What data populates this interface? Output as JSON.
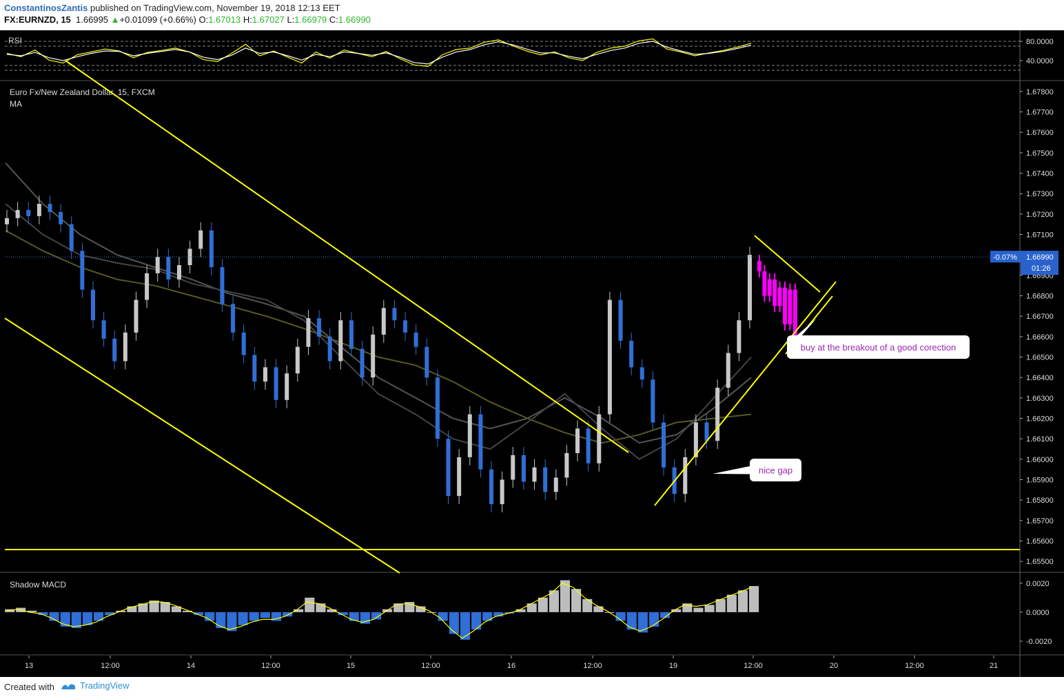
{
  "header": {
    "author": "ConstantinosZantis",
    "published_text": "published on TradingView.com, November 19, 2018 12:13 EET",
    "symbol": "FX:EURNZD, 15",
    "last": "1.66995",
    "change": "+0.01099 (+0.66%)",
    "open_label": "O:",
    "open": "1.67013",
    "high_label": "H:",
    "high": "1.67027",
    "low_label": "L:",
    "low": "1.66979",
    "close_label": "C:",
    "close": "1.66990",
    "up_arrow": "▲"
  },
  "footer": {
    "created_with": "Created with",
    "brand": "TradingView",
    "logo_icon": "tradingview-logo-icon"
  },
  "colors": {
    "background": "#000000",
    "trendline": "#ffff00",
    "bull": "#c8c8c8",
    "bear": "#2f6fd6",
    "projection": "#ff00ff",
    "price_tag": "#2962cc",
    "rsi": "#ffff00",
    "rsi_signal": "#ffffff",
    "callout_text": "#9c27b0"
  },
  "chart_data": [
    {
      "type": "line",
      "panel": "RSI",
      "title": "RSI",
      "ylim": [
        0,
        100
      ],
      "ticks": [
        "80.0000",
        "40.0000"
      ],
      "tick_values": [
        80,
        40
      ],
      "bands": [
        80,
        70,
        30,
        20
      ],
      "series": [
        {
          "name": "RSI",
          "values": [
            55,
            48,
            62,
            41,
            35,
            52,
            58,
            64,
            60,
            46,
            57,
            61,
            66,
            58,
            42,
            38,
            55,
            74,
            50,
            60,
            47,
            35,
            58,
            45,
            62,
            55,
            48,
            59,
            44,
            31,
            28,
            52,
            63,
            66,
            78,
            83,
            71,
            60,
            52,
            58,
            46,
            40,
            57,
            66,
            70,
            81,
            85,
            64,
            58,
            50,
            56,
            61,
            68,
            76
          ]
        },
        {
          "name": "",
          "values": [
            53,
            50,
            57,
            46,
            40,
            48,
            55,
            60,
            59,
            50,
            55,
            59,
            63,
            58,
            47,
            42,
            51,
            66,
            55,
            58,
            50,
            41,
            53,
            48,
            58,
            55,
            51,
            56,
            47,
            36,
            33,
            47,
            58,
            63,
            73,
            79,
            73,
            64,
            56,
            56,
            49,
            44,
            53,
            61,
            66,
            76,
            80,
            68,
            60,
            53,
            55,
            59,
            65,
            72
          ]
        }
      ]
    },
    {
      "type": "line",
      "panel": "price",
      "title": "Euro Fx/New Zealand Dollar, 15, FXCM",
      "subtitle": "MA",
      "ylim": [
        1.6545,
        1.6785
      ],
      "ticks": [
        "1.67800",
        "1.67700",
        "1.67600",
        "1.67500",
        "1.67400",
        "1.67300",
        "1.67200",
        "1.67100",
        "1.66900",
        "1.66800",
        "1.66700",
        "1.66600",
        "1.66500",
        "1.66400",
        "1.66300",
        "1.66200",
        "1.66100",
        "1.66000",
        "1.65900",
        "1.65800",
        "1.65700",
        "1.65600",
        "1.65500"
      ],
      "tick_values": [
        1.678,
        1.677,
        1.676,
        1.675,
        1.674,
        1.673,
        1.672,
        1.671,
        1.669,
        1.668,
        1.667,
        1.666,
        1.665,
        1.664,
        1.663,
        1.662,
        1.661,
        1.66,
        1.659,
        1.658,
        1.657,
        1.656,
        1.655
      ],
      "last_price": "1.66990",
      "last_price_value": 1.6699,
      "last_change": "-0.07%",
      "countdown": "01:26",
      "x_labels": [
        "13",
        "12:00",
        "14",
        "12:00",
        "15",
        "12:00",
        "16",
        "12:00",
        "19",
        "12:00",
        "20",
        "12:00",
        "21"
      ],
      "close": [
        1.6718,
        1.6722,
        1.6719,
        1.6725,
        1.6721,
        1.6715,
        1.6702,
        1.6683,
        1.6668,
        1.6659,
        1.6648,
        1.6662,
        1.6678,
        1.6691,
        1.6699,
        1.6688,
        1.6695,
        1.6703,
        1.6712,
        1.6694,
        1.6676,
        1.6662,
        1.6651,
        1.6638,
        1.6645,
        1.6629,
        1.6642,
        1.6655,
        1.6669,
        1.666,
        1.6648,
        1.6668,
        1.6654,
        1.664,
        1.6661,
        1.6674,
        1.6668,
        1.6662,
        1.6655,
        1.664,
        1.661,
        1.6582,
        1.6601,
        1.6622,
        1.6595,
        1.6578,
        1.659,
        1.6602,
        1.6589,
        1.6596,
        1.6584,
        1.6591,
        1.6603,
        1.6615,
        1.6598,
        1.6622,
        1.6678,
        1.6658,
        1.6645,
        1.6639,
        1.6618,
        1.6596,
        1.6583,
        1.6601,
        1.6618,
        1.6609,
        1.6635,
        1.6652,
        1.6668,
        1.67
      ],
      "projection": [
        1.6692,
        1.668,
        1.6688,
        1.6675,
        1.6684,
        1.6666,
        1.6683,
        1.666
      ],
      "moving_averages": [
        {
          "name": "",
          "color": "#595921",
          "values": [
            1.6712,
            1.6702,
            1.6694,
            1.6688,
            1.6685,
            1.668,
            1.6675,
            1.667,
            1.6664,
            1.6657,
            1.665,
            1.6646,
            1.6638,
            1.6628,
            1.662,
            1.6613,
            1.6608,
            1.6612,
            1.6618,
            1.662,
            1.6622
          ]
        },
        {
          "name": "",
          "color": "#555555",
          "values": [
            1.6745,
            1.6725,
            1.671,
            1.67,
            1.6694,
            1.6688,
            1.6681,
            1.6676,
            1.667,
            1.6655,
            1.664,
            1.663,
            1.662,
            1.6615,
            1.662,
            1.663,
            1.662,
            1.6608,
            1.6612,
            1.6625,
            1.664
          ]
        },
        {
          "name": "",
          "color": "#444444",
          "values": [
            1.6725,
            1.671,
            1.67,
            1.6696,
            1.6693,
            1.6686,
            1.6682,
            1.6678,
            1.6668,
            1.665,
            1.6632,
            1.6622,
            1.661,
            1.6605,
            1.6618,
            1.6632,
            1.6615,
            1.66,
            1.661,
            1.663,
            1.665
          ]
        }
      ],
      "trendlines_note": "yellow trend channel, support and triangle lines",
      "annotations": [
        {
          "text": "nice gap"
        },
        {
          "text": "buy at the breakout of a good corection"
        }
      ]
    },
    {
      "type": "bar",
      "panel": "MACD",
      "title": "Shadow MACD",
      "ylim": [
        -0.0029,
        0.0027
      ],
      "ticks": [
        "0.0020",
        "0.0000",
        "-0.0020"
      ],
      "tick_values": [
        0.002,
        0.0,
        -0.002
      ],
      "histogram": [
        0.0002,
        0.0003,
        0.0001,
        -0.0002,
        -0.0006,
        -0.001,
        -0.0011,
        -0.0009,
        -0.0006,
        -0.0002,
        0.0001,
        0.0004,
        0.0006,
        0.0008,
        0.0007,
        0.0004,
        0.0001,
        -0.0002,
        -0.0006,
        -0.0011,
        -0.0013,
        -0.0009,
        -0.0006,
        -0.0004,
        -0.0006,
        -0.0003,
        0.0002,
        0.001,
        0.0006,
        0.0002,
        -0.0002,
        -0.0006,
        -0.0008,
        -0.0005,
        0.0002,
        0.0006,
        0.0007,
        0.0004,
        0.0,
        -0.0006,
        -0.0015,
        -0.0019,
        -0.0012,
        -0.0006,
        -0.0003,
        -0.0001,
        0.0002,
        0.0006,
        0.001,
        0.0015,
        0.0022,
        0.0016,
        0.0009,
        0.0004,
        0.0,
        -0.0006,
        -0.0012,
        -0.0014,
        -0.001,
        -0.0004,
        0.0002,
        0.0006,
        0.0003,
        0.0005,
        0.0009,
        0.0012,
        0.0015,
        0.0018
      ],
      "signal": [
        0.0001,
        0.0002,
        0.0,
        -0.0001,
        -0.0004,
        -0.0008,
        -0.001,
        -0.0009,
        -0.0007,
        -0.0003,
        0.0,
        0.0003,
        0.0005,
        0.0007,
        0.0007,
        0.0005,
        0.0002,
        -0.0001,
        -0.0004,
        -0.0009,
        -0.0012,
        -0.001,
        -0.0007,
        -0.0005,
        -0.0005,
        -0.0003,
        0.0001,
        0.0007,
        0.0006,
        0.0003,
        -0.0001,
        -0.0005,
        -0.0007,
        -0.0005,
        0.0,
        0.0005,
        0.0006,
        0.0004,
        0.0001,
        -0.0004,
        -0.0012,
        -0.0018,
        -0.0013,
        -0.0007,
        -0.0003,
        -0.0001,
        0.0001,
        0.0005,
        0.0009,
        0.0013,
        0.002,
        0.0017,
        0.001,
        0.0005,
        0.0001,
        -0.0004,
        -0.001,
        -0.0013,
        -0.001,
        -0.0005,
        0.0001,
        0.0005,
        0.0004,
        0.0005,
        0.0008,
        0.0011,
        0.0014,
        0.0017
      ]
    }
  ]
}
